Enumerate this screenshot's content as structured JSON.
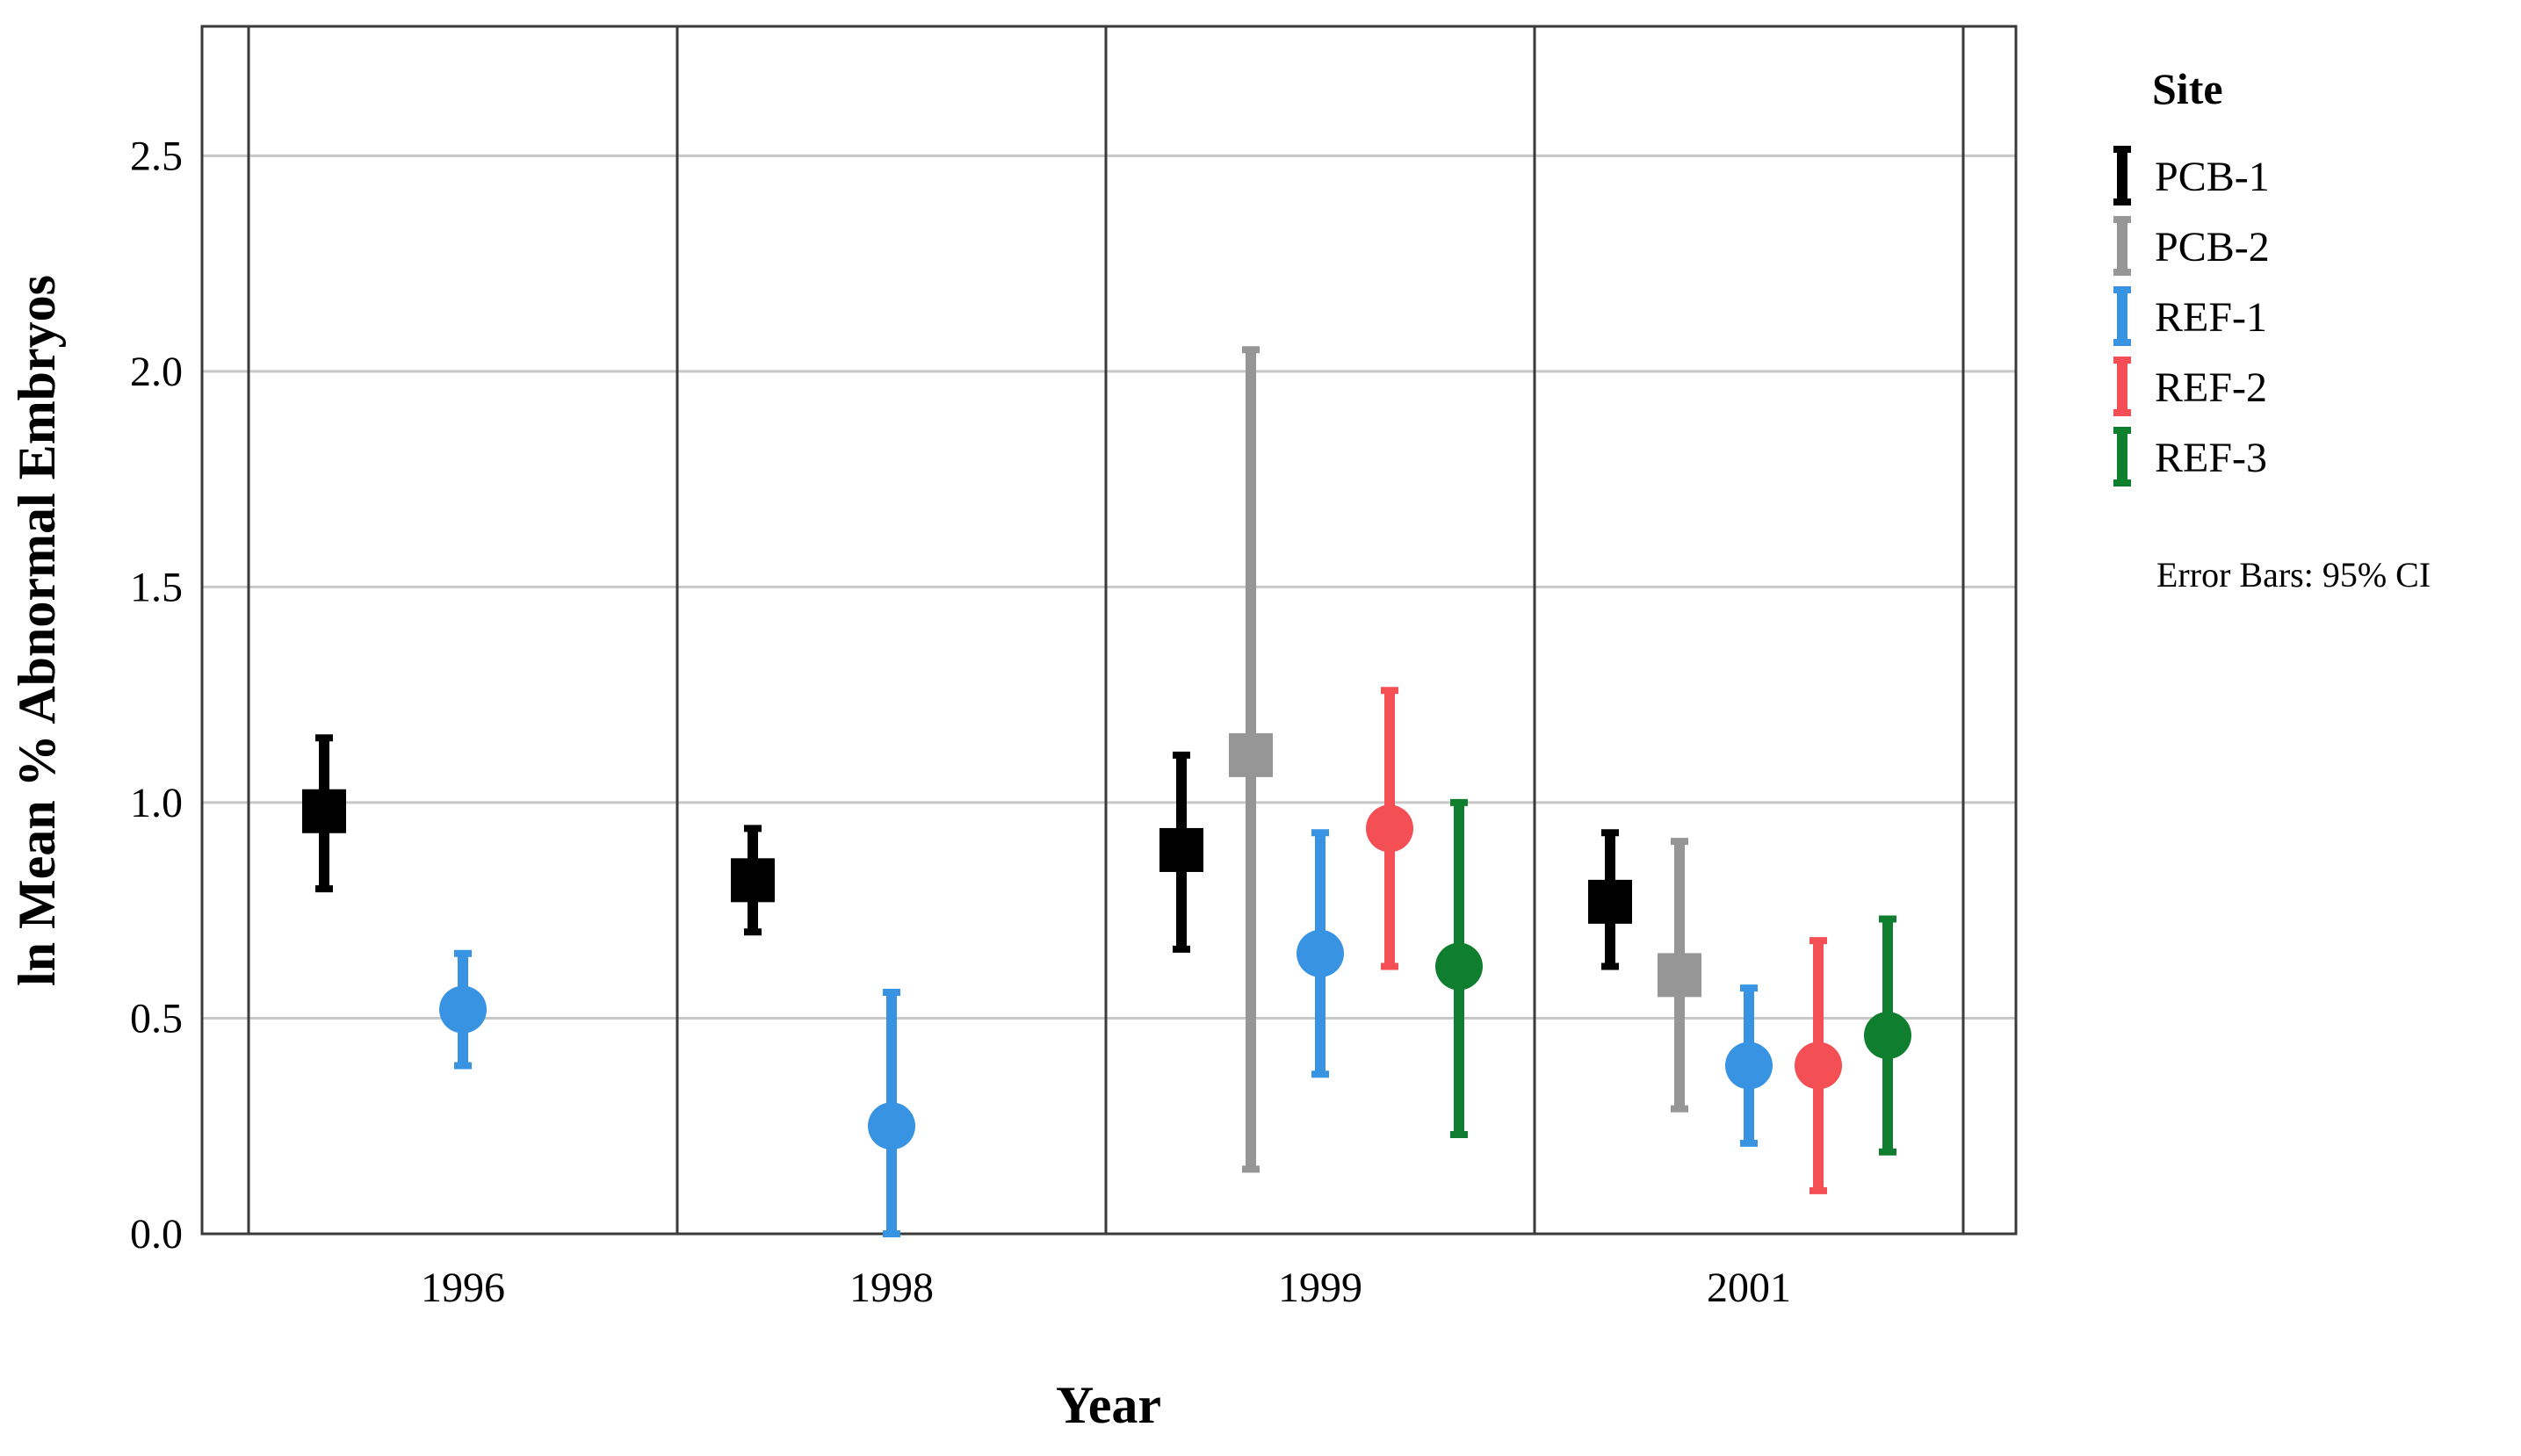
{
  "chart_data": {
    "type": "scatter",
    "subtype": "means-with-error-bars",
    "ylabel": "ln Mean % Abnormal Embryos",
    "xlabel": "Year",
    "categories": [
      "1996",
      "1998",
      "1999",
      "2001"
    ],
    "ylim": [
      0,
      2.8
    ],
    "yticks": [
      "0.0",
      "0.5",
      "1.0",
      "1.5",
      "2.0",
      "2.5"
    ],
    "grid": true,
    "legend": {
      "title": "Site",
      "position": "right"
    },
    "note": "Error Bars: 95% CI",
    "series": [
      {
        "name": "PCB-1",
        "color": "#000000",
        "marker": "square",
        "points": [
          {
            "category": "1996",
            "mean": 0.98,
            "lower": 0.8,
            "upper": 1.15
          },
          {
            "category": "1998",
            "mean": 0.82,
            "lower": 0.7,
            "upper": 0.94
          },
          {
            "category": "1999",
            "mean": 0.89,
            "lower": 0.66,
            "upper": 1.11
          },
          {
            "category": "2001",
            "mean": 0.77,
            "lower": 0.62,
            "upper": 0.93
          }
        ]
      },
      {
        "name": "PCB-2",
        "color": "#969696",
        "marker": "square",
        "points": [
          {
            "category": "1999",
            "mean": 1.11,
            "lower": 0.15,
            "upper": 2.05
          },
          {
            "category": "2001",
            "mean": 0.6,
            "lower": 0.29,
            "upper": 0.91
          }
        ]
      },
      {
        "name": "REF-1",
        "color": "#3894e2",
        "marker": "circle",
        "points": [
          {
            "category": "1996",
            "mean": 0.52,
            "lower": 0.39,
            "upper": 0.65
          },
          {
            "category": "1998",
            "mean": 0.25,
            "lower": 0.0,
            "upper": 0.56
          },
          {
            "category": "1999",
            "mean": 0.65,
            "lower": 0.37,
            "upper": 0.93
          },
          {
            "category": "2001",
            "mean": 0.39,
            "lower": 0.21,
            "upper": 0.57
          }
        ]
      },
      {
        "name": "REF-2",
        "color": "#f44f55",
        "marker": "circle",
        "points": [
          {
            "category": "1999",
            "mean": 0.94,
            "lower": 0.62,
            "upper": 1.26
          },
          {
            "category": "2001",
            "mean": 0.39,
            "lower": 0.1,
            "upper": 0.68
          }
        ]
      },
      {
        "name": "REF-3",
        "color": "#0f7f2f",
        "marker": "circle",
        "points": [
          {
            "category": "1999",
            "mean": 0.62,
            "lower": 0.23,
            "upper": 1.0
          },
          {
            "category": "2001",
            "mean": 0.46,
            "lower": 0.19,
            "upper": 0.73
          }
        ]
      }
    ]
  }
}
